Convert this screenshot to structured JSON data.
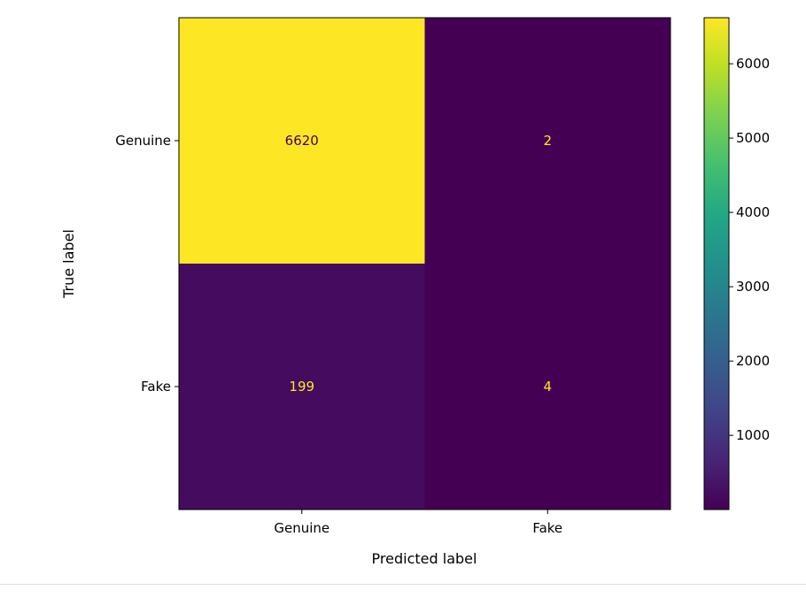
{
  "chart_data": {
    "type": "heatmap",
    "title": "",
    "xlabel": "Predicted label",
    "ylabel": "True label",
    "x_categories": [
      "Genuine",
      "Fake"
    ],
    "y_categories": [
      "Genuine",
      "Fake"
    ],
    "matrix": [
      [
        6620,
        2
      ],
      [
        199,
        4
      ]
    ],
    "colormap": "viridis",
    "colorbar": {
      "range": [
        2,
        6620
      ],
      "ticks": [
        1000,
        2000,
        3000,
        4000,
        5000,
        6000
      ]
    },
    "grid": false
  },
  "colors": {
    "cell_label_on_dark": "#fde725",
    "cell_label_on_light": "#440154"
  }
}
